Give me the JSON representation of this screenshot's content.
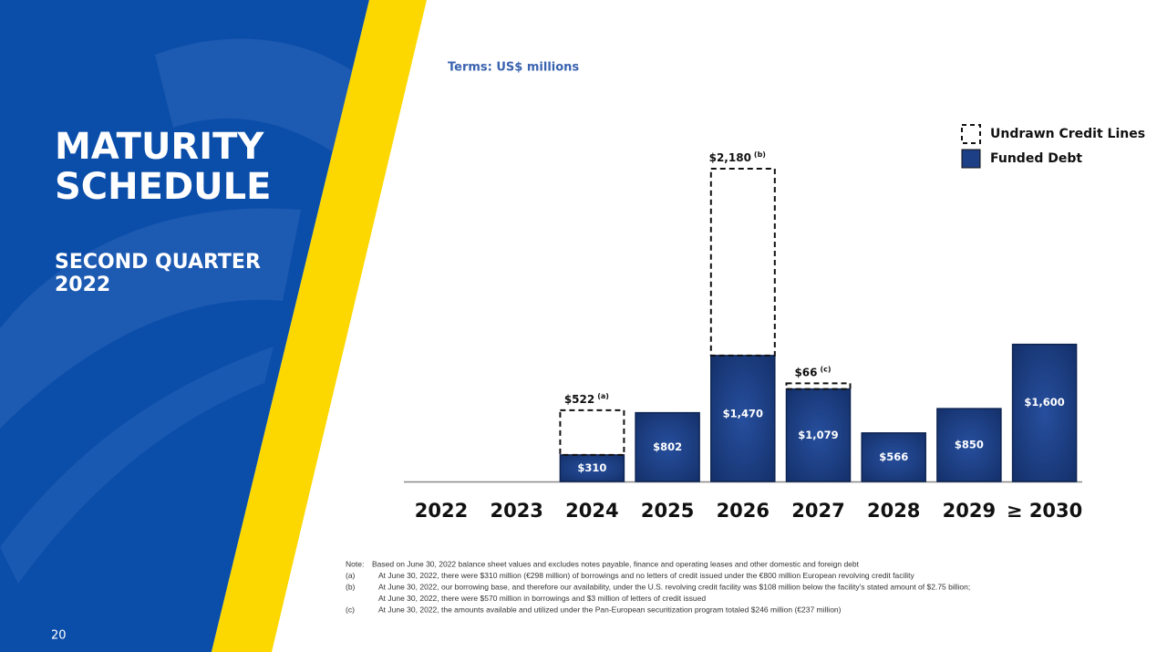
{
  "header": {
    "title": "MATURITY SCHEDULE",
    "title_lines": [
      "MATURITY",
      "SCHEDULE"
    ],
    "subtitle_lines": [
      "SECOND QUARTER",
      "2022"
    ],
    "page_number": "20"
  },
  "chart_data": {
    "type": "bar",
    "stacked": true,
    "subtitle": "Terms: US$ millions",
    "categories": [
      "2022",
      "2023",
      "2024",
      "2025",
      "2026",
      "2027",
      "2028",
      "2029",
      "≥ 2030"
    ],
    "series": [
      {
        "name": "Funded Debt",
        "color": "#1d3f86",
        "values": [
          null,
          null,
          310,
          802,
          1470,
          1079,
          566,
          850,
          1600
        ],
        "value_labels": [
          null,
          null,
          "$310",
          "$802",
          "$1,470",
          "$1,079",
          "$566",
          "$850",
          "$1,600"
        ]
      },
      {
        "name": "Undrawn Credit Lines",
        "color": "none",
        "style": "dashed",
        "values": [
          null,
          null,
          522,
          null,
          2180,
          66,
          null,
          null,
          null
        ],
        "value_labels": [
          null,
          null,
          "$522",
          null,
          "$2,180",
          "$66",
          null,
          null,
          null
        ],
        "footnote_marks": [
          null,
          null,
          "(a)",
          null,
          "(b)",
          "(c)",
          null,
          null,
          null
        ]
      }
    ],
    "legend_order": [
      1,
      0
    ],
    "legend": "top-right"
  },
  "notes": [
    {
      "mark": "Note:",
      "lines": [
        "Based on June 30, 2022 balance sheet values and excludes notes payable, finance and operating leases and other domestic and foreign debt"
      ]
    },
    {
      "mark": "(a)",
      "lines": [
        "At June 30, 2022, there were $310 million (€298 million) of borrowings and no letters of credit issued under the €800 million European revolving credit facility"
      ]
    },
    {
      "mark": "(b)",
      "lines": [
        "At June 30, 2022, our borrowing base, and therefore our availability, under the U.S. revolving credit facility was $108 million below the facility's stated amount of $2.75 billion;",
        "At June 30, 2022, there were $570 million in borrowings and $3 million of letters of credit issued"
      ]
    },
    {
      "mark": "(c)",
      "lines": [
        "At June 30, 2022, the amounts available and utilized under the Pan-European securitization program totaled $246 million (€237 million)"
      ]
    }
  ]
}
